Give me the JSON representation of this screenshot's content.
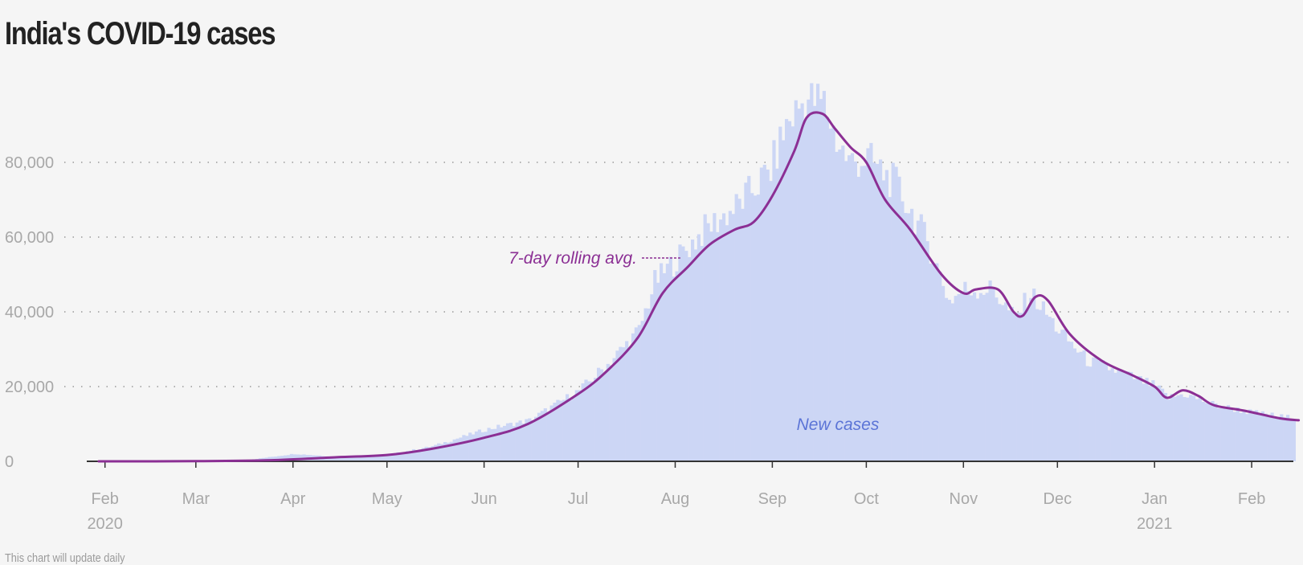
{
  "title": "India's COVID-19 cases",
  "footnote": "This chart will update daily",
  "colors": {
    "bars": "#ccd6f5",
    "line": "#8b2f94",
    "grid": "#9a9a9a",
    "axis": "#333333",
    "background": "#f5f5f5"
  },
  "chart_data": {
    "type": "bar",
    "title": "India's COVID-19 cases",
    "xlabel": "",
    "ylabel": "",
    "ylim": [
      0,
      100000
    ],
    "y_ticks": [
      0,
      20000,
      40000,
      60000,
      80000
    ],
    "y_tick_labels": [
      "0",
      "20,000",
      "40,000",
      "60,000",
      "80,000"
    ],
    "grid": "horizontal dotted",
    "x_ticks": [
      {
        "date": "2020-02-01",
        "label": "Feb",
        "year": "2020"
      },
      {
        "date": "2020-03-01",
        "label": "Mar",
        "year": ""
      },
      {
        "date": "2020-04-01",
        "label": "Apr",
        "year": ""
      },
      {
        "date": "2020-05-01",
        "label": "May",
        "year": ""
      },
      {
        "date": "2020-06-01",
        "label": "Jun",
        "year": ""
      },
      {
        "date": "2020-07-01",
        "label": "Jul",
        "year": ""
      },
      {
        "date": "2020-08-01",
        "label": "Aug",
        "year": ""
      },
      {
        "date": "2020-09-01",
        "label": "Sep",
        "year": ""
      },
      {
        "date": "2020-10-01",
        "label": "Oct",
        "year": ""
      },
      {
        "date": "2020-11-01",
        "label": "Nov",
        "year": ""
      },
      {
        "date": "2020-12-01",
        "label": "Dec",
        "year": ""
      },
      {
        "date": "2021-01-01",
        "label": "Jan",
        "year": "2021"
      },
      {
        "date": "2021-02-01",
        "label": "Feb",
        "year": ""
      }
    ],
    "annotations": {
      "rolling_avg_label": "7-day rolling avg.",
      "new_cases_label": "New cases"
    },
    "series": [
      {
        "name": "New cases",
        "kind": "bar",
        "x": [
          "2020-01-30",
          "2020-03-01",
          "2020-03-15",
          "2020-04-01",
          "2020-04-15",
          "2020-05-01",
          "2020-05-15",
          "2020-06-01",
          "2020-06-15",
          "2020-07-01",
          "2020-07-10",
          "2020-07-20",
          "2020-07-25",
          "2020-08-01",
          "2020-08-10",
          "2020-08-20",
          "2020-08-31",
          "2020-09-05",
          "2020-09-11",
          "2020-09-17",
          "2020-09-21",
          "2020-09-25",
          "2020-10-01",
          "2020-10-10",
          "2020-10-20",
          "2020-10-27",
          "2020-11-01",
          "2020-11-10",
          "2020-11-17",
          "2020-11-22",
          "2020-12-01",
          "2020-12-10",
          "2020-12-20",
          "2021-01-01",
          "2021-01-05",
          "2021-01-10",
          "2021-01-20",
          "2021-02-01",
          "2021-02-14"
        ],
        "values": [
          1,
          3,
          110,
          2000,
          1200,
          1800,
          4000,
          8500,
          11000,
          19000,
          26000,
          35000,
          48000,
          54000,
          62000,
          68000,
          78000,
          90000,
          97000,
          96000,
          86000,
          80000,
          81000,
          74000,
          59000,
          43000,
          46000,
          46000,
          38000,
          45000,
          35000,
          27000,
          24000,
          20000,
          17000,
          18000,
          15000,
          13000,
          11500
        ]
      },
      {
        "name": "7-day rolling avg.",
        "kind": "line",
        "x": [
          "2020-01-30",
          "2020-03-01",
          "2020-03-25",
          "2020-04-15",
          "2020-05-01",
          "2020-05-15",
          "2020-06-01",
          "2020-06-15",
          "2020-07-01",
          "2020-07-10",
          "2020-07-20",
          "2020-07-28",
          "2020-08-05",
          "2020-08-12",
          "2020-08-20",
          "2020-08-26",
          "2020-09-01",
          "2020-09-08",
          "2020-09-12",
          "2020-09-17",
          "2020-09-21",
          "2020-09-26",
          "2020-10-01",
          "2020-10-07",
          "2020-10-15",
          "2020-10-25",
          "2020-11-01",
          "2020-11-05",
          "2020-11-12",
          "2020-11-17",
          "2020-11-20",
          "2020-11-24",
          "2020-11-28",
          "2020-12-05",
          "2020-12-15",
          "2020-12-25",
          "2021-01-01",
          "2021-01-05",
          "2021-01-10",
          "2021-01-15",
          "2021-01-20",
          "2021-01-30",
          "2021-02-10",
          "2021-02-16"
        ],
        "values": [
          0,
          50,
          300,
          1100,
          1700,
          3300,
          6300,
          10000,
          18000,
          24000,
          33000,
          45000,
          52000,
          58000,
          62000,
          64000,
          71000,
          83000,
          92000,
          93000,
          89000,
          84000,
          80000,
          70000,
          62000,
          50000,
          45000,
          46000,
          46000,
          40000,
          39000,
          44000,
          43000,
          34000,
          27000,
          23000,
          20000,
          17000,
          19000,
          17500,
          15000,
          13500,
          11500,
          11000
        ]
      }
    ]
  }
}
